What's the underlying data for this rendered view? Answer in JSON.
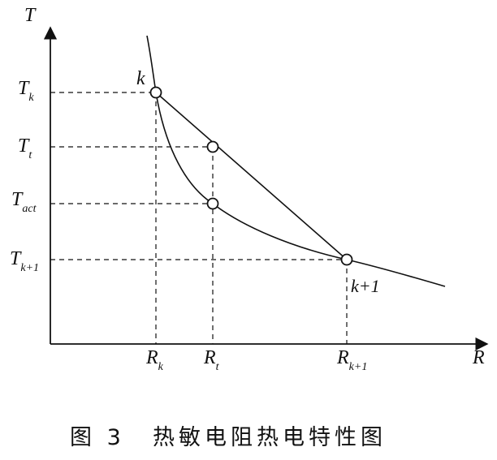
{
  "axes": {
    "x_label": "R",
    "y_label": "T"
  },
  "y_ticks": [
    {
      "main": "T",
      "sub": "k"
    },
    {
      "main": "T",
      "sub": "t"
    },
    {
      "main": "T",
      "sub": "act"
    },
    {
      "main": "T",
      "sub": "k+1"
    }
  ],
  "x_ticks": [
    {
      "main": "R",
      "sub": "k"
    },
    {
      "main": "R",
      "sub": "t"
    },
    {
      "main": "R",
      "sub": "k+1"
    }
  ],
  "point_labels": {
    "k": "k",
    "k_plus_1": "k+1"
  },
  "caption": {
    "figure_number": "图 3",
    "title": "热敏电阻热电特性图"
  }
}
